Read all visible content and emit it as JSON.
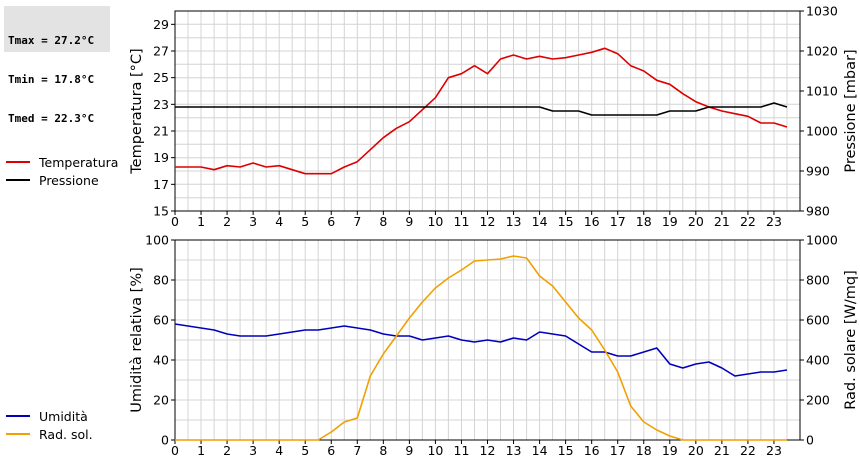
{
  "stats": {
    "tmax": "Tmax = 27.2°C",
    "tmin": "Tmin = 17.8°C",
    "tmed": "Tmed = 22.3°C"
  },
  "colors": {
    "temperature": "#dd0000",
    "pressure": "#000000",
    "humidity": "#0000bb",
    "radiation": "#f0a000",
    "grid": "#d4d4d4"
  },
  "chart_data": [
    {
      "type": "line",
      "xlim": [
        0,
        24
      ],
      "xticks": [
        "0",
        "1",
        "2",
        "3",
        "4",
        "5",
        "6",
        "7",
        "8",
        "9",
        "10",
        "11",
        "12",
        "13",
        "14",
        "15",
        "16",
        "17",
        "18",
        "19",
        "20",
        "21",
        "22",
        "23"
      ],
      "grid": true,
      "legend_position": "left",
      "ylabel": "Temperatura [°C]",
      "ylim": [
        15,
        30
      ],
      "yticks": [
        "15",
        "17",
        "19",
        "21",
        "23",
        "25",
        "27",
        "29"
      ],
      "y2label": "Pressione [mbar]",
      "y2lim": [
        980,
        1030
      ],
      "y2ticks": [
        "980",
        "990",
        "1000",
        "1010",
        "1020",
        "1030"
      ],
      "series": [
        {
          "name": "Temperatura",
          "axis": "left",
          "color": "#dd0000",
          "x": [
            0,
            0.5,
            1,
            1.5,
            2,
            2.5,
            3,
            3.5,
            4,
            4.5,
            5,
            5.5,
            6,
            6.5,
            7,
            7.5,
            8,
            8.5,
            9,
            9.5,
            10,
            10.5,
            11,
            11.5,
            12,
            12.5,
            13,
            13.5,
            14,
            14.5,
            15,
            15.5,
            16,
            16.5,
            17,
            17.5,
            18,
            18.5,
            19,
            19.5,
            20,
            20.5,
            21,
            21.5,
            22,
            22.5,
            23,
            23.5
          ],
          "values": [
            18.3,
            18.3,
            18.3,
            18.1,
            18.4,
            18.3,
            18.6,
            18.3,
            18.4,
            18.1,
            17.8,
            17.8,
            17.8,
            18.3,
            18.7,
            19.6,
            20.5,
            21.2,
            21.7,
            22.6,
            23.5,
            25.0,
            25.3,
            25.9,
            25.3,
            26.4,
            26.7,
            26.4,
            26.6,
            26.4,
            26.5,
            26.7,
            26.9,
            27.2,
            26.8,
            25.9,
            25.5,
            24.8,
            24.5,
            23.8,
            23.2,
            22.8,
            22.5,
            22.3,
            22.1,
            21.6,
            21.6,
            21.3
          ]
        },
        {
          "name": "Pressione",
          "axis": "right",
          "color": "#000000",
          "x": [
            0,
            1,
            2,
            3,
            4,
            5,
            6,
            7,
            8,
            9,
            10,
            11,
            12,
            13,
            14,
            14.5,
            15,
            15.5,
            16,
            16.5,
            17,
            17.5,
            18,
            18.5,
            19,
            19.5,
            20,
            20.5,
            21,
            21.5,
            22,
            22.5,
            23,
            23.5
          ],
          "values": [
            1006,
            1006,
            1006,
            1006,
            1006,
            1006,
            1006,
            1006,
            1006,
            1006,
            1006,
            1006,
            1006,
            1006,
            1006,
            1005,
            1005,
            1005,
            1004,
            1004,
            1004,
            1004,
            1004,
            1004,
            1005,
            1005,
            1005,
            1006,
            1006,
            1006,
            1006,
            1006,
            1007,
            1006
          ]
        }
      ]
    },
    {
      "type": "line",
      "xlim": [
        0,
        24
      ],
      "xticks": [
        "0",
        "1",
        "2",
        "3",
        "4",
        "5",
        "6",
        "7",
        "8",
        "9",
        "10",
        "11",
        "12",
        "13",
        "14",
        "15",
        "16",
        "17",
        "18",
        "19",
        "20",
        "21",
        "22",
        "23"
      ],
      "grid": true,
      "legend_position": "left",
      "ylabel": "Umidità relativa [%]",
      "ylim": [
        0,
        100
      ],
      "yticks": [
        "0",
        "20",
        "40",
        "60",
        "80",
        "100"
      ],
      "y2label": "Rad. solare [W/mq]",
      "y2lim": [
        0,
        1000
      ],
      "y2ticks": [
        "0",
        "200",
        "400",
        "600",
        "800",
        "1000"
      ],
      "series": [
        {
          "name": "Umidità",
          "axis": "left",
          "color": "#0000bb",
          "x": [
            0,
            0.5,
            1,
            1.5,
            2,
            2.5,
            3,
            3.5,
            4,
            4.5,
            5,
            5.5,
            6,
            6.5,
            7,
            7.5,
            8,
            8.5,
            9,
            9.5,
            10,
            10.5,
            11,
            11.5,
            12,
            12.5,
            13,
            13.5,
            14,
            14.5,
            15,
            15.5,
            16,
            16.5,
            17,
            17.5,
            18,
            18.5,
            19,
            19.5,
            20,
            20.5,
            21,
            21.5,
            22,
            22.5,
            23,
            23.5
          ],
          "values": [
            58,
            57,
            56,
            55,
            53,
            52,
            52,
            52,
            53,
            54,
            55,
            55,
            56,
            57,
            56,
            55,
            53,
            52,
            52,
            50,
            51,
            52,
            50,
            49,
            50,
            49,
            51,
            50,
            54,
            53,
            52,
            48,
            44,
            44,
            42,
            42,
            44,
            46,
            38,
            36,
            38,
            39,
            36,
            32,
            33,
            34,
            34,
            35
          ]
        },
        {
          "name": "Rad. sol.",
          "axis": "right",
          "color": "#f0a000",
          "x": [
            0,
            1,
            2,
            3,
            4,
            5,
            5.5,
            6,
            6.5,
            7,
            7.5,
            8,
            8.5,
            9,
            9.5,
            10,
            10.5,
            11,
            11.5,
            12,
            12.5,
            13,
            13.5,
            14,
            14.5,
            15,
            15.5,
            16,
            16.5,
            17,
            17.5,
            18,
            18.5,
            19,
            19.5,
            20,
            21,
            22,
            23,
            23.5
          ],
          "values": [
            0,
            0,
            0,
            0,
            0,
            0,
            0,
            40,
            90,
            110,
            320,
            430,
            520,
            610,
            690,
            760,
            810,
            850,
            895,
            900,
            905,
            920,
            910,
            820,
            770,
            690,
            610,
            550,
            450,
            340,
            170,
            90,
            50,
            20,
            0,
            0,
            0,
            0,
            0,
            0
          ]
        }
      ]
    }
  ]
}
